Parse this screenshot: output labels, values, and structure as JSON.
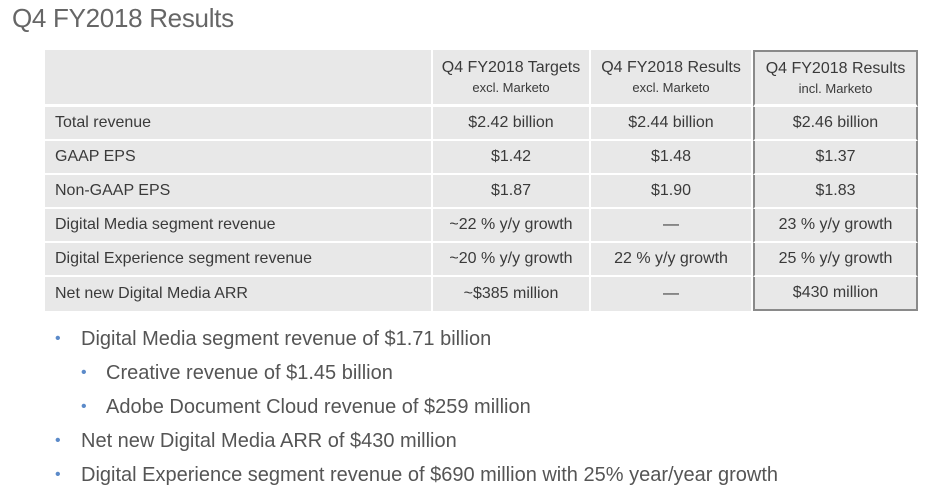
{
  "title": "Q4 FY2018 Results",
  "table": {
    "headers": [
      {
        "main": "",
        "sub": ""
      },
      {
        "main": "Q4 FY2018 Targets",
        "sub": "excl. Marketo"
      },
      {
        "main": "Q4 FY2018 Results",
        "sub": "excl. Marketo"
      },
      {
        "main": "Q4 FY2018 Results",
        "sub": "incl. Marketo"
      }
    ],
    "rows": [
      {
        "label": "Total revenue",
        "targets": "$2.42 billion",
        "results_excl": "$2.44 billion",
        "results_incl": "$2.46 billion"
      },
      {
        "label": "GAAP EPS",
        "targets": "$1.42",
        "results_excl": "$1.48",
        "results_incl": "$1.37"
      },
      {
        "label": "Non-GAAP EPS",
        "targets": "$1.87",
        "results_excl": "$1.90",
        "results_incl": "$1.83"
      },
      {
        "label": "Digital Media segment revenue",
        "targets": "~22 % y/y growth",
        "results_excl": "—",
        "results_incl": "23 % y/y growth"
      },
      {
        "label": "Digital Experience segment revenue",
        "targets": "~20 % y/y growth",
        "results_excl": "22 % y/y growth",
        "results_incl": "25 % y/y growth"
      },
      {
        "label": "Net new Digital Media ARR",
        "targets": "~$385 million",
        "results_excl": "—",
        "results_incl": "$430 million"
      }
    ]
  },
  "bullets": [
    {
      "level": 1,
      "text": "Digital Media segment revenue of $1.71 billion"
    },
    {
      "level": 2,
      "text": "Creative revenue of $1.45 billion"
    },
    {
      "level": 2,
      "text": "Adobe Document Cloud revenue of $259 million"
    },
    {
      "level": 1,
      "text": "Net new Digital Media ARR of $430 million"
    },
    {
      "level": 1,
      "text": "Digital Experience segment revenue of $690 million with 25% year/year growth"
    }
  ],
  "bullet_glyph": "•",
  "colors": {
    "table_bg": "#e8e8e8",
    "highlight_border": "#8a8a8a",
    "bullet": "#5b8ac9",
    "title": "#666666"
  }
}
